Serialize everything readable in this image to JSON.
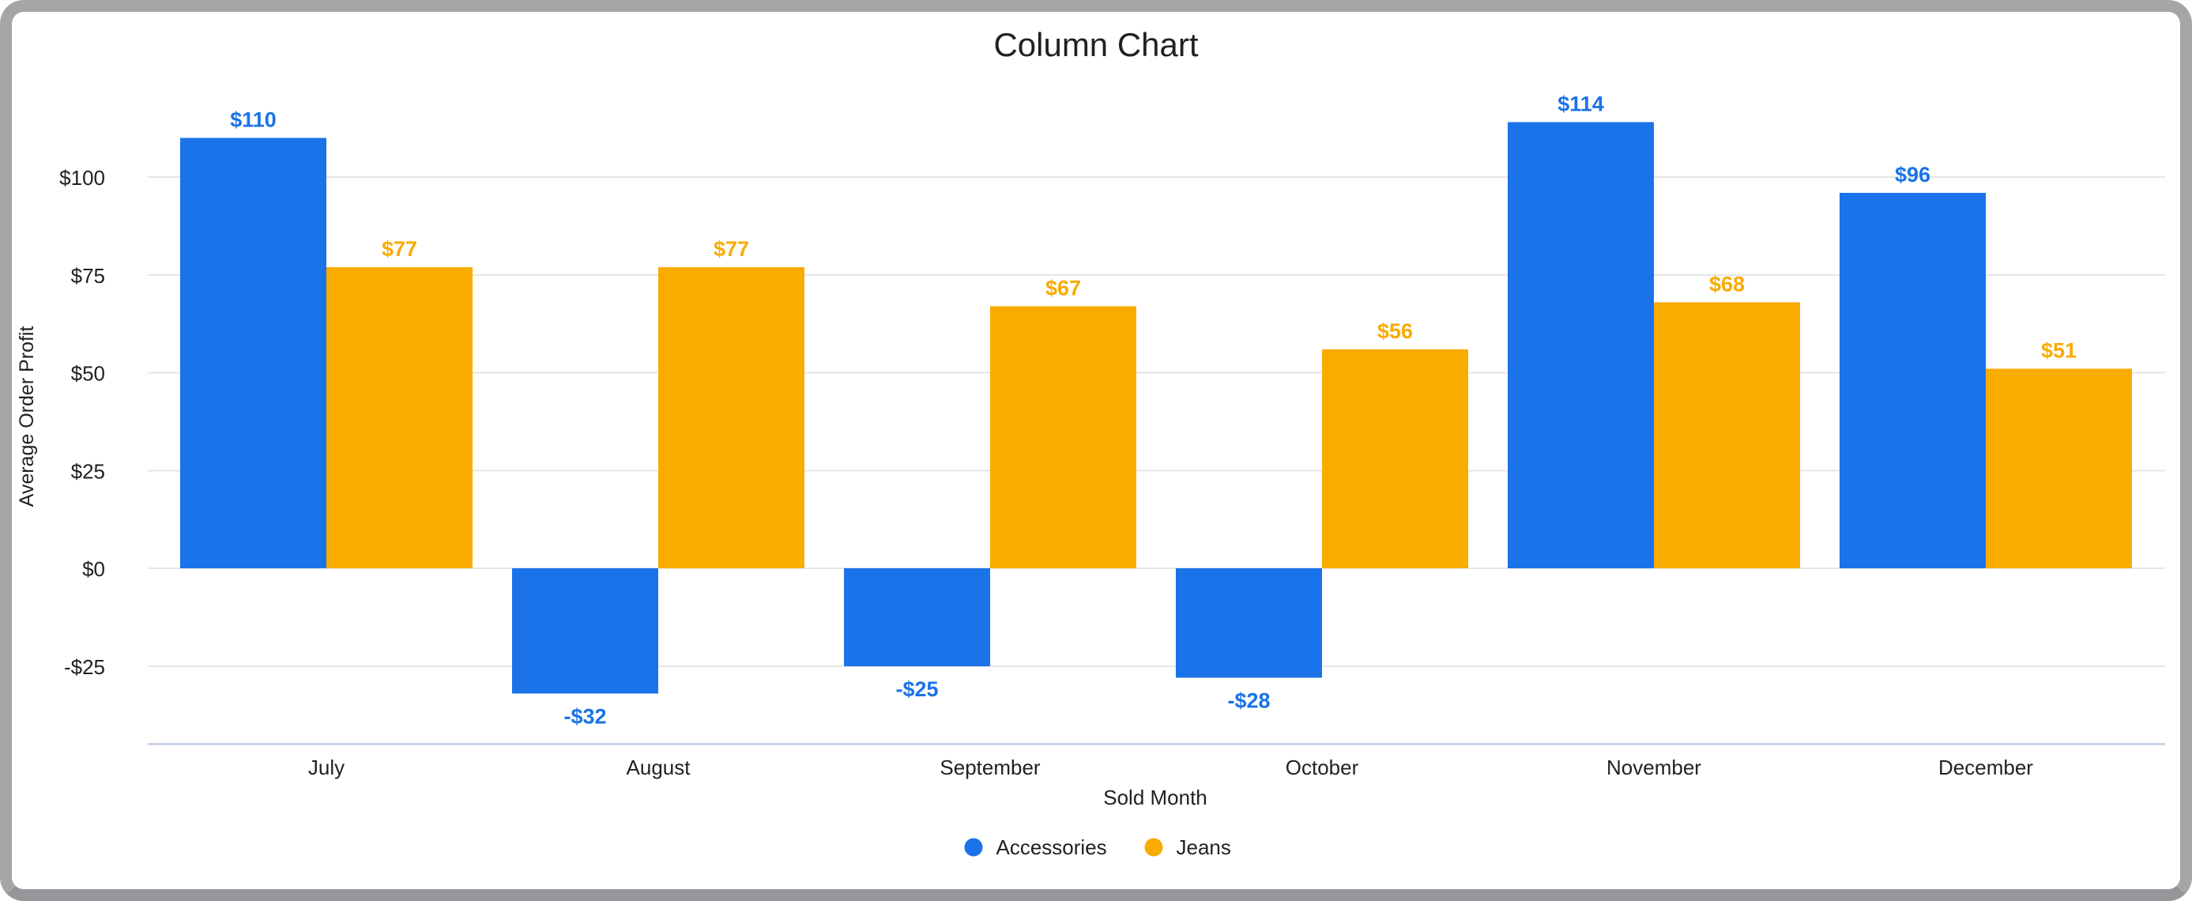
{
  "chart_data": {
    "type": "bar",
    "title": "Column Chart",
    "xlabel": "Sold Month",
    "ylabel": "Average Order Profit",
    "categories": [
      "July",
      "August",
      "September",
      "October",
      "November",
      "December"
    ],
    "series": [
      {
        "name": "Accessories",
        "color": "#1A73E8",
        "values": [
          110,
          -32,
          -25,
          -28,
          114,
          96
        ],
        "labels": [
          "$110",
          "-$32",
          "-$25",
          "-$28",
          "$114",
          "$96"
        ]
      },
      {
        "name": "Jeans",
        "color": "#F9AB00",
        "values": [
          77,
          77,
          67,
          56,
          68,
          51
        ],
        "labels": [
          "$77",
          "$77",
          "$67",
          "$56",
          "$68",
          "$51"
        ]
      }
    ],
    "y_axis": {
      "ticks": [
        -25,
        0,
        25,
        50,
        75,
        100
      ],
      "tick_labels": [
        "-$25",
        "$0",
        "$25",
        "$50",
        "$75",
        "$100"
      ],
      "ylim": [
        -45,
        123
      ]
    },
    "grid": true,
    "legend_position": "bottom",
    "style": {
      "grid_color": "#E6E6E6",
      "axis_line_color": "#CBD5E8",
      "text_color": "#202124"
    }
  }
}
